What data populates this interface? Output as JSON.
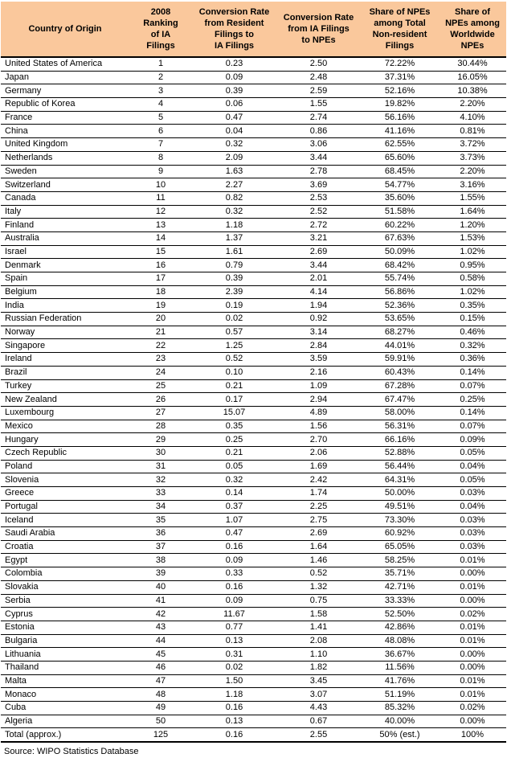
{
  "colors": {
    "header_bg": "#FAC89C",
    "border": "#000000",
    "text": "#000000",
    "page_bg": "#FFFFFF"
  },
  "table": {
    "headers": {
      "country": "Country of Origin",
      "rank": "2008\nRanking\nof IA\nFilings",
      "conv_resident_to_ia": "Conversion Rate\nfrom Resident\nFilings to\nIA Filings",
      "conv_ia_to_npe": "Conversion Rate\nfrom IA Filings\nto NPEs",
      "share_nonresident": "Share of NPEs\namong Total\nNon-resident\nFilings",
      "share_worldwide": "Share of\nNPEs among\nWorldwide\nNPEs"
    },
    "rows": [
      [
        "United States of America",
        "1",
        "0.23",
        "2.50",
        "72.22%",
        "30.44%"
      ],
      [
        "Japan",
        "2",
        "0.09",
        "2.48",
        "37.31%",
        "16.05%"
      ],
      [
        "Germany",
        "3",
        "0.39",
        "2.59",
        "52.16%",
        "10.38%"
      ],
      [
        "Republic of Korea",
        "4",
        "0.06",
        "1.55",
        "19.82%",
        "2.20%"
      ],
      [
        "France",
        "5",
        "0.47",
        "2.74",
        "56.16%",
        "4.10%"
      ],
      [
        "China",
        "6",
        "0.04",
        "0.86",
        "41.16%",
        "0.81%"
      ],
      [
        "United Kingdom",
        "7",
        "0.32",
        "3.06",
        "62.55%",
        "3.72%"
      ],
      [
        "Netherlands",
        "8",
        "2.09",
        "3.44",
        "65.60%",
        "3.73%"
      ],
      [
        "Sweden",
        "9",
        "1.63",
        "2.78",
        "68.45%",
        "2.20%"
      ],
      [
        "Switzerland",
        "10",
        "2.27",
        "3.69",
        "54.77%",
        "3.16%"
      ],
      [
        "Canada",
        "11",
        "0.82",
        "2.53",
        "35.60%",
        "1.55%"
      ],
      [
        "Italy",
        "12",
        "0.32",
        "2.52",
        "51.58%",
        "1.64%"
      ],
      [
        "Finland",
        "13",
        "1.18",
        "2.72",
        "60.22%",
        "1.20%"
      ],
      [
        "Australia",
        "14",
        "1.37",
        "3.21",
        "67.63%",
        "1.53%"
      ],
      [
        "Israel",
        "15",
        "1.61",
        "2.69",
        "50.09%",
        "1.02%"
      ],
      [
        "Denmark",
        "16",
        "0.79",
        "3.44",
        "68.42%",
        "0.95%"
      ],
      [
        "Spain",
        "17",
        "0.39",
        "2.01",
        "55.74%",
        "0.58%"
      ],
      [
        "Belgium",
        "18",
        "2.39",
        "4.14",
        "56.86%",
        "1.02%"
      ],
      [
        "India",
        "19",
        "0.19",
        "1.94",
        "52.36%",
        "0.35%"
      ],
      [
        "Russian Federation",
        "20",
        "0.02",
        "0.92",
        "53.65%",
        "0.15%"
      ],
      [
        "Norway",
        "21",
        "0.57",
        "3.14",
        "68.27%",
        "0.46%"
      ],
      [
        "Singapore",
        "22",
        "1.25",
        "2.84",
        "44.01%",
        "0.32%"
      ],
      [
        "Ireland",
        "23",
        "0.52",
        "3.59",
        "59.91%",
        "0.36%"
      ],
      [
        "Brazil",
        "24",
        "0.10",
        "2.16",
        "60.43%",
        "0.14%"
      ],
      [
        "Turkey",
        "25",
        "0.21",
        "1.09",
        "67.28%",
        "0.07%"
      ],
      [
        "New Zealand",
        "26",
        "0.17",
        "2.94",
        "67.47%",
        "0.25%"
      ],
      [
        "Luxembourg",
        "27",
        "15.07",
        "4.89",
        "58.00%",
        "0.14%"
      ],
      [
        "Mexico",
        "28",
        "0.35",
        "1.56",
        "56.31%",
        "0.07%"
      ],
      [
        "Hungary",
        "29",
        "0.25",
        "2.70",
        "66.16%",
        "0.09%"
      ],
      [
        "Czech Republic",
        "30",
        "0.21",
        "2.06",
        "52.88%",
        "0.05%"
      ],
      [
        "Poland",
        "31",
        "0.05",
        "1.69",
        "56.44%",
        "0.04%"
      ],
      [
        "Slovenia",
        "32",
        "0.32",
        "2.42",
        "64.31%",
        "0.05%"
      ],
      [
        "Greece",
        "33",
        "0.14",
        "1.74",
        "50.00%",
        "0.03%"
      ],
      [
        "Portugal",
        "34",
        "0.37",
        "2.25",
        "49.51%",
        "0.04%"
      ],
      [
        "Iceland",
        "35",
        "1.07",
        "2.75",
        "73.30%",
        "0.03%"
      ],
      [
        "Saudi Arabia",
        "36",
        "0.47",
        "2.69",
        "60.92%",
        "0.03%"
      ],
      [
        "Croatia",
        "37",
        "0.16",
        "1.64",
        "65.05%",
        "0.03%"
      ],
      [
        "Egypt",
        "38",
        "0.09",
        "1.46",
        "58.25%",
        "0.01%"
      ],
      [
        "Colombia",
        "39",
        "0.33",
        "0.52",
        "35.71%",
        "0.00%"
      ],
      [
        "Slovakia",
        "40",
        "0.16",
        "1.32",
        "42.71%",
        "0.01%"
      ],
      [
        "Serbia",
        "41",
        "0.09",
        "0.75",
        "33.33%",
        "0.00%"
      ],
      [
        "Cyprus",
        "42",
        "11.67",
        "1.58",
        "52.50%",
        "0.02%"
      ],
      [
        "Estonia",
        "43",
        "0.77",
        "1.41",
        "42.86%",
        "0.01%"
      ],
      [
        "Bulgaria",
        "44",
        "0.13",
        "2.08",
        "48.08%",
        "0.01%"
      ],
      [
        "Lithuania",
        "45",
        "0.31",
        "1.10",
        "36.67%",
        "0.00%"
      ],
      [
        "Thailand",
        "46",
        "0.02",
        "1.82",
        "11.56%",
        "0.00%"
      ],
      [
        "Malta",
        "47",
        "1.50",
        "3.45",
        "41.76%",
        "0.01%"
      ],
      [
        "Monaco",
        "48",
        "1.18",
        "3.07",
        "51.19%",
        "0.01%"
      ],
      [
        "Cuba",
        "49",
        "0.16",
        "4.43",
        "85.32%",
        "0.02%"
      ],
      [
        "Algeria",
        "50",
        "0.13",
        "0.67",
        "40.00%",
        "0.00%"
      ]
    ],
    "total_row": [
      "Total (approx.)",
      "125",
      "0.16",
      "2.55",
      "50% (est.)",
      "100%"
    ],
    "source": "Source: WIPO Statistics Database"
  }
}
